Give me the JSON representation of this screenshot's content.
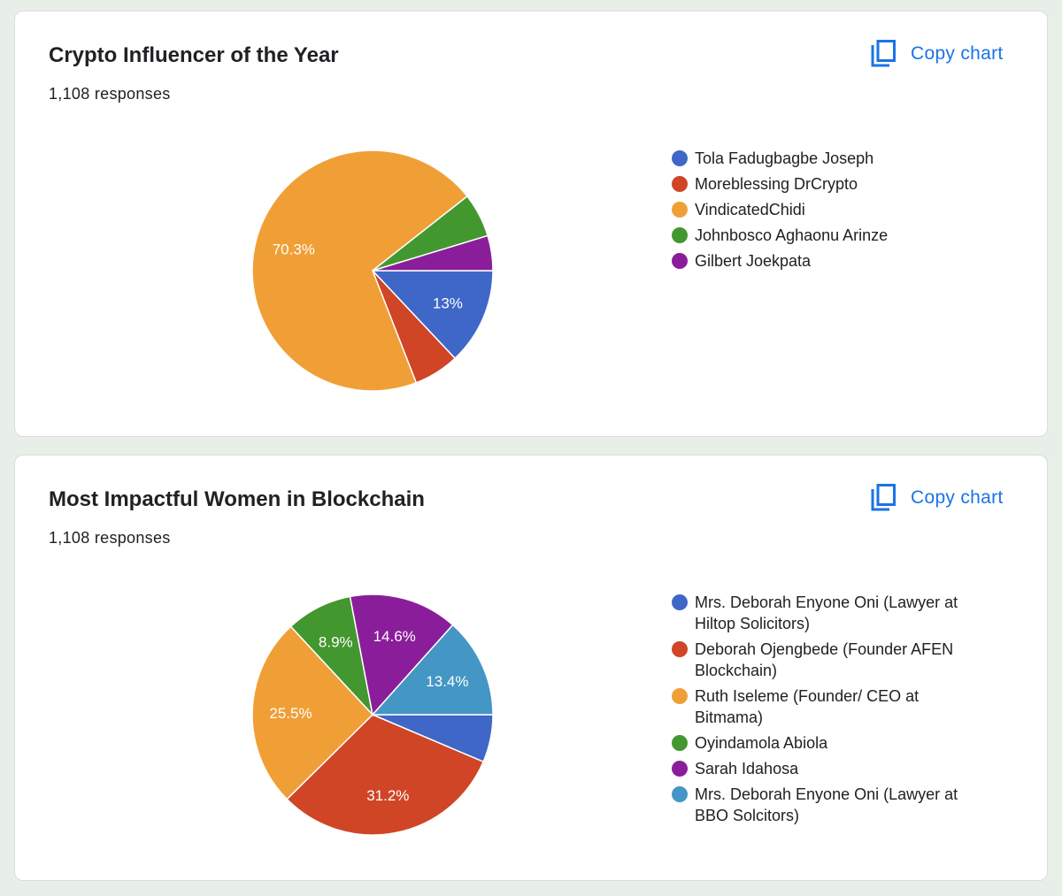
{
  "copy_label": "Copy chart",
  "chart_data": [
    {
      "type": "pie",
      "title": "Crypto Influencer of the Year",
      "subtitle": "1,108 responses",
      "slices": [
        {
          "label": "Tola Fadugbagbe Joseph",
          "value": 13.0,
          "color": "#3f67c8",
          "shown": "13%"
        },
        {
          "label": "Moreblessing DrCrypto",
          "value": 6.1,
          "color": "#cf4526",
          "shown": ""
        },
        {
          "label": "VindicatedChidi",
          "value": 70.3,
          "color": "#f09f37",
          "shown": "70.3%"
        },
        {
          "label": "Johnbosco Aghaonu Arinze",
          "value": 5.9,
          "color": "#43972f",
          "shown": ""
        },
        {
          "label": "Gilbert Joekpata",
          "value": 4.7,
          "color": "#8a1e9a",
          "shown": ""
        }
      ]
    },
    {
      "type": "pie",
      "title": "Most Impactful Women in Blockchain",
      "subtitle": "1,108 responses",
      "slices": [
        {
          "label": "Mrs. Deborah Enyone Oni (Lawyer at Hiltop Solicitors)",
          "value": 6.4,
          "color": "#3f67c8",
          "shown": ""
        },
        {
          "label": "Deborah Ojengbede (Founder AFEN Blockchain)",
          "value": 31.2,
          "color": "#cf4526",
          "shown": "31.2%"
        },
        {
          "label": "Ruth Iseleme (Founder/ CEO at Bitmama)",
          "value": 25.5,
          "color": "#f09f37",
          "shown": "25.5%"
        },
        {
          "label": "Oyindamola Abiola",
          "value": 8.9,
          "color": "#43972f",
          "shown": "8.9%"
        },
        {
          "label": "Sarah Idahosa",
          "value": 14.6,
          "color": "#8a1e9a",
          "shown": "14.6%"
        },
        {
          "label": "Mrs. Deborah Enyone Oni (Lawyer at BBO Solcitors)",
          "value": 13.4,
          "color": "#4496c4",
          "shown": "13.4%"
        }
      ]
    }
  ]
}
